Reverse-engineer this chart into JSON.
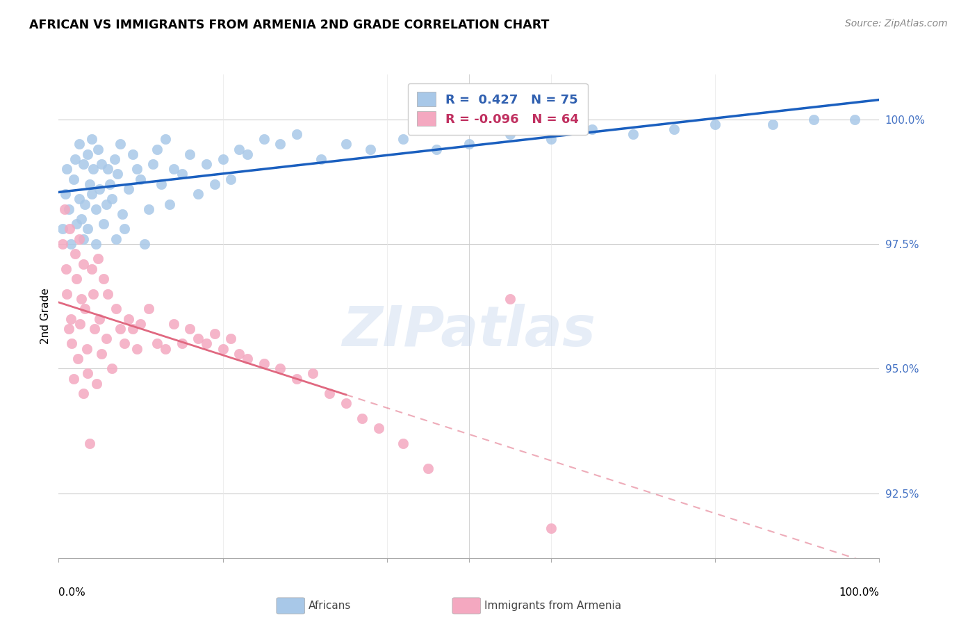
{
  "title": "AFRICAN VS IMMIGRANTS FROM ARMENIA 2ND GRADE CORRELATION CHART",
  "source": "Source: ZipAtlas.com",
  "ylabel": "2nd Grade",
  "y_ticks": [
    92.5,
    95.0,
    97.5,
    100.0
  ],
  "y_tick_labels": [
    "92.5%",
    "95.0%",
    "97.5%",
    "100.0%"
  ],
  "x_range": [
    0.0,
    1.0
  ],
  "y_range": [
    91.2,
    100.9
  ],
  "legend_r_blue": "0.427",
  "legend_n_blue": "75",
  "legend_r_pink": "-0.096",
  "legend_n_pink": "64",
  "blue_color": "#a8c8e8",
  "pink_color": "#f4a8c0",
  "line_blue": "#1a5fbf",
  "line_pink": "#e06880",
  "africans_x": [
    0.005,
    0.008,
    0.01,
    0.012,
    0.015,
    0.018,
    0.02,
    0.022,
    0.025,
    0.025,
    0.028,
    0.03,
    0.03,
    0.032,
    0.035,
    0.035,
    0.038,
    0.04,
    0.04,
    0.042,
    0.045,
    0.045,
    0.048,
    0.05,
    0.052,
    0.055,
    0.058,
    0.06,
    0.062,
    0.065,
    0.068,
    0.07,
    0.072,
    0.075,
    0.078,
    0.08,
    0.085,
    0.09,
    0.095,
    0.1,
    0.105,
    0.11,
    0.115,
    0.12,
    0.125,
    0.13,
    0.135,
    0.14,
    0.15,
    0.16,
    0.17,
    0.18,
    0.19,
    0.2,
    0.21,
    0.22,
    0.23,
    0.25,
    0.27,
    0.29,
    0.32,
    0.35,
    0.38,
    0.42,
    0.46,
    0.5,
    0.55,
    0.6,
    0.65,
    0.7,
    0.75,
    0.8,
    0.87,
    0.92,
    0.97
  ],
  "africans_y": [
    97.8,
    98.5,
    99.0,
    98.2,
    97.5,
    98.8,
    99.2,
    97.9,
    98.4,
    99.5,
    98.0,
    97.6,
    99.1,
    98.3,
    99.3,
    97.8,
    98.7,
    99.6,
    98.5,
    99.0,
    97.5,
    98.2,
    99.4,
    98.6,
    99.1,
    97.9,
    98.3,
    99.0,
    98.7,
    98.4,
    99.2,
    97.6,
    98.9,
    99.5,
    98.1,
    97.8,
    98.6,
    99.3,
    99.0,
    98.8,
    97.5,
    98.2,
    99.1,
    99.4,
    98.7,
    99.6,
    98.3,
    99.0,
    98.9,
    99.3,
    98.5,
    99.1,
    98.7,
    99.2,
    98.8,
    99.4,
    99.3,
    99.6,
    99.5,
    99.7,
    99.2,
    99.5,
    99.4,
    99.6,
    99.4,
    99.5,
    99.7,
    99.6,
    99.8,
    99.7,
    99.8,
    99.9,
    99.9,
    100.0,
    100.0
  ],
  "armenia_x": [
    0.005,
    0.007,
    0.009,
    0.01,
    0.012,
    0.013,
    0.015,
    0.016,
    0.018,
    0.02,
    0.022,
    0.023,
    0.025,
    0.026,
    0.028,
    0.03,
    0.03,
    0.032,
    0.034,
    0.035,
    0.038,
    0.04,
    0.042,
    0.044,
    0.046,
    0.048,
    0.05,
    0.052,
    0.055,
    0.058,
    0.06,
    0.065,
    0.07,
    0.075,
    0.08,
    0.085,
    0.09,
    0.095,
    0.1,
    0.11,
    0.12,
    0.13,
    0.14,
    0.15,
    0.16,
    0.17,
    0.18,
    0.19,
    0.2,
    0.21,
    0.22,
    0.23,
    0.25,
    0.27,
    0.29,
    0.31,
    0.33,
    0.35,
    0.37,
    0.39,
    0.42,
    0.45,
    0.55,
    0.6
  ],
  "armenia_y": [
    97.5,
    98.2,
    97.0,
    96.5,
    95.8,
    97.8,
    96.0,
    95.5,
    94.8,
    97.3,
    96.8,
    95.2,
    97.6,
    95.9,
    96.4,
    94.5,
    97.1,
    96.2,
    95.4,
    94.9,
    93.5,
    97.0,
    96.5,
    95.8,
    94.7,
    97.2,
    96.0,
    95.3,
    96.8,
    95.6,
    96.5,
    95.0,
    96.2,
    95.8,
    95.5,
    96.0,
    95.8,
    95.4,
    95.9,
    96.2,
    95.5,
    95.4,
    95.9,
    95.5,
    95.8,
    95.6,
    95.5,
    95.7,
    95.4,
    95.6,
    95.3,
    95.2,
    95.1,
    95.0,
    94.8,
    94.9,
    94.5,
    94.3,
    94.0,
    93.8,
    93.5,
    93.0,
    96.4,
    91.8
  ]
}
